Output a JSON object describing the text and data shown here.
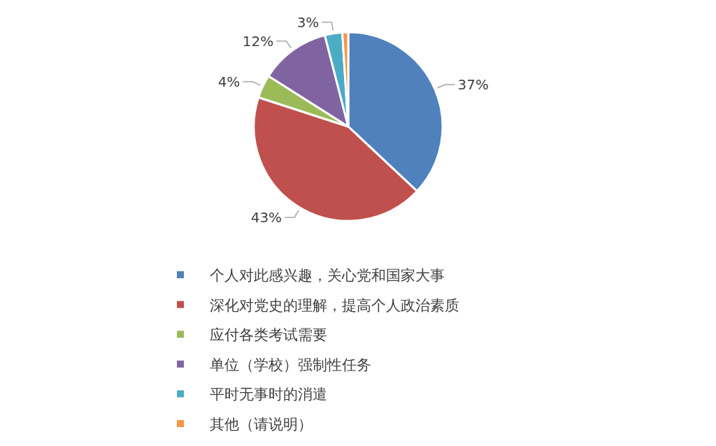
{
  "chart_data": {
    "type": "pie",
    "categories": [
      "个人对此感兴趣，关心党和国家大事",
      "深化对党史的理解，提高个人政治素质",
      "应付各类考试需要",
      "单位（学校）强制性任务",
      "平时无事时的消遣",
      "其他（请说明）"
    ],
    "values": [
      37,
      43,
      4,
      12,
      3,
      1
    ],
    "colors": [
      "#4f81bd",
      "#c0504d",
      "#9bbb59",
      "#8064a2",
      "#4bacc6",
      "#f79646"
    ],
    "value_labels": [
      "37%",
      "43%",
      "4%",
      "12%",
      "3%",
      null
    ],
    "legend": "bottom"
  }
}
